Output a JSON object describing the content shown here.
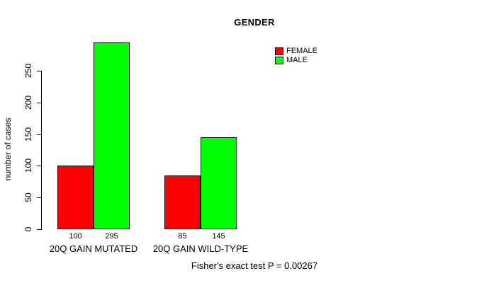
{
  "chart_data": {
    "type": "bar",
    "title": "GENDER",
    "ylabel": "number of cases",
    "xlabel": "",
    "categories": [
      "20Q GAIN MUTATED",
      "20Q GAIN WILD-TYPE"
    ],
    "series": [
      {
        "name": "FEMALE",
        "color": "#FF0000",
        "values": [
          100,
          85
        ]
      },
      {
        "name": "MALE",
        "color": "#00FF00",
        "values": [
          295,
          145
        ]
      }
    ],
    "bar_value_labels": [
      [
        100,
        295
      ],
      [
        85,
        145
      ]
    ],
    "yticks": [
      0,
      50,
      100,
      150,
      200,
      250
    ],
    "ylim": [
      0,
      295
    ],
    "grid": false,
    "legend_position": "top-right",
    "annotation": "Fisher's exact test P = 0.00267",
    "colors": {
      "axis": "#000000",
      "text": "#000000",
      "background": "#FFFFFF",
      "female": "#FF0000",
      "male": "#00FF00"
    }
  }
}
